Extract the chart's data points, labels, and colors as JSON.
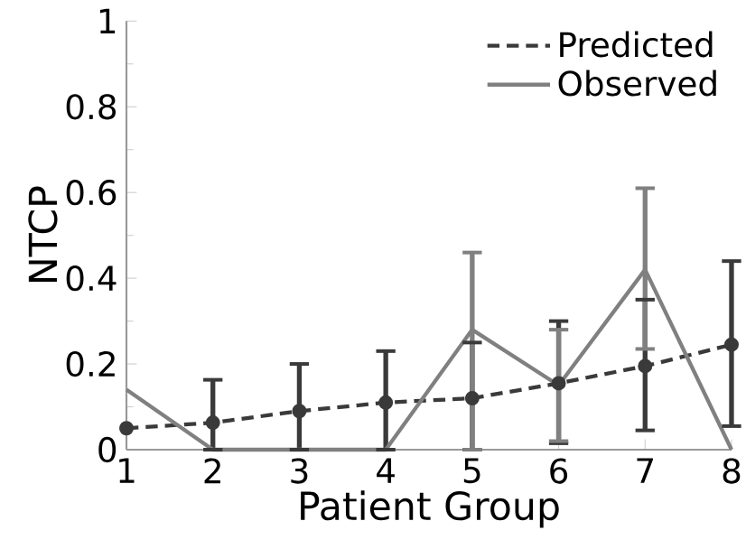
{
  "chart_data": {
    "type": "line",
    "xlabel": "Patient Group",
    "ylabel": "NTCP",
    "x": [
      1,
      2,
      3,
      4,
      5,
      6,
      7,
      8
    ],
    "series": [
      {
        "name": "Predicted",
        "color": "#3a3a3a",
        "line_style": "dashed",
        "marker": "circle",
        "values": [
          0.05,
          0.063,
          0.09,
          0.11,
          0.12,
          0.155,
          0.195,
          0.245
        ],
        "errors": [
          null,
          [
            0,
            0.163
          ],
          [
            0,
            0.2
          ],
          [
            0,
            0.23
          ],
          [
            0,
            0.25
          ],
          [
            0.015,
            0.3
          ],
          [
            0.045,
            0.35
          ],
          [
            0.055,
            0.44
          ]
        ]
      },
      {
        "name": "Observed",
        "color": "#808080",
        "line_style": "solid",
        "marker": "none",
        "values": [
          0.14,
          0,
          0,
          0,
          0.28,
          0.15,
          0.42,
          0
        ],
        "errors": [
          null,
          null,
          null,
          null,
          [
            0,
            0.46
          ],
          [
            0.02,
            0.28
          ],
          [
            0.235,
            0.61
          ],
          null
        ]
      }
    ],
    "xlim": [
      1,
      8
    ],
    "ylim": [
      0,
      1
    ],
    "xticks": [
      1,
      2,
      3,
      4,
      5,
      6,
      7,
      8
    ],
    "yticks": [
      0,
      0.2,
      0.4,
      0.6,
      0.8,
      1
    ],
    "grid": false,
    "legend": "top right"
  }
}
